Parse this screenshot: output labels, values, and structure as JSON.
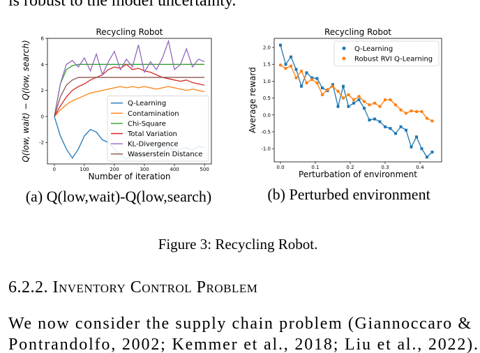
{
  "header": {
    "text": "is robust to the model uncertainty."
  },
  "chart_data": [
    {
      "type": "line",
      "title": "Recycling Robot",
      "x_label": "Number of iteration",
      "y_label": "Q(low, wait) − Q(low, search)",
      "x": [
        0,
        20,
        40,
        60,
        80,
        100,
        120,
        140,
        160,
        180,
        200,
        220,
        240,
        260,
        280,
        300,
        320,
        340,
        360,
        380,
        400,
        420,
        440,
        460,
        480,
        500
      ],
      "series": [
        {
          "name": "Q-Learning",
          "color": "#1f77b4",
          "values": [
            0,
            -1.5,
            -2.5,
            -3.2,
            -2.5,
            -1.5,
            -1,
            -1.2,
            -1.8,
            -2,
            -2.5,
            -3,
            -3.3,
            -3,
            -2.8,
            -3,
            -2.5,
            -2.6,
            -2.8,
            -2.4,
            -2.6,
            -2.5,
            -2.4,
            -2.6,
            -2.3,
            -2.4
          ]
        },
        {
          "name": "Contamination",
          "color": "#ff7f0e",
          "values": [
            0,
            0.5,
            0.9,
            1.2,
            1.4,
            1.6,
            1.8,
            1.9,
            2.0,
            2.1,
            2.2,
            2.3,
            2.2,
            2.3,
            2.2,
            2.3,
            2.2,
            2.1,
            2.2,
            2.3,
            2.2,
            2.1,
            2.0,
            2.1,
            2.0,
            1.9
          ]
        },
        {
          "name": "Chi-Square",
          "color": "#2ca02c",
          "values": [
            0,
            2.5,
            3.6,
            3.9,
            4,
            4,
            4,
            4,
            4,
            4,
            4,
            4,
            4,
            4,
            4,
            4,
            4,
            4,
            4,
            4,
            4,
            4,
            4,
            4,
            4,
            4
          ]
        },
        {
          "name": "Total Variation",
          "color": "#d62728",
          "values": [
            0,
            0.8,
            1.5,
            2,
            2.3,
            2.5,
            2.8,
            3.0,
            3.2,
            3.6,
            3.8,
            3.7,
            4.0,
            3.6,
            3.7,
            3.5,
            3.4,
            3.2,
            3.0,
            2.9,
            2.8,
            2.7,
            2.8,
            2.6,
            2.5,
            2.4
          ]
        },
        {
          "name": "KL-Divergence",
          "color": "#9467bd",
          "values": [
            0,
            2.5,
            4,
            4.3,
            3.8,
            4.5,
            3.5,
            4.8,
            3.2,
            4.2,
            5.0,
            3.6,
            4.4,
            3.8,
            5.5,
            3.4,
            4.2,
            3.6,
            4.5,
            5.8,
            3.6,
            4.0,
            5.2,
            3.8,
            4.4,
            4.2
          ]
        },
        {
          "name": "Wasserstein Distance",
          "color": "#8c564b",
          "values": [
            0,
            1.5,
            2.4,
            2.8,
            3,
            3,
            3,
            3,
            3,
            3,
            3,
            3,
            3,
            3,
            3,
            3,
            3,
            3,
            3,
            3,
            3,
            3,
            3,
            3,
            3,
            3
          ]
        }
      ],
      "xlim": [
        -23,
        523
      ],
      "xticks": [
        0,
        100,
        200,
        300,
        400,
        500
      ],
      "ylim": [
        -3.65,
        6
      ],
      "yticks": [
        -2,
        0,
        2,
        4,
        6
      ],
      "legend": "lower right",
      "caption": "(a) Q(low,wait)-Q(low,search)"
    },
    {
      "type": "line",
      "title": "Recycling Robot",
      "x_label": "Perturbation of environment",
      "y_label": "Average reward",
      "x": [
        0,
        0.015,
        0.03,
        0.045,
        0.06,
        0.075,
        0.09,
        0.105,
        0.12,
        0.135,
        0.15,
        0.165,
        0.18,
        0.195,
        0.21,
        0.225,
        0.24,
        0.255,
        0.27,
        0.285,
        0.3,
        0.315,
        0.33,
        0.345,
        0.36,
        0.375,
        0.39,
        0.405,
        0.42,
        0.435
      ],
      "series": [
        {
          "name": "Q-Learning",
          "color": "#1f77b4",
          "marker": "square",
          "values": [
            2.07,
            1.5,
            1.72,
            1.35,
            0.85,
            1.25,
            1.1,
            1.08,
            0.8,
            0.72,
            0.9,
            0.25,
            0.85,
            0.25,
            0.35,
            0.45,
            0.2,
            -0.15,
            -0.12,
            -0.2,
            -0.35,
            -0.4,
            -0.55,
            -0.35,
            -0.45,
            -0.95,
            -0.65,
            -1.0,
            -1.25,
            -1.1
          ]
        },
        {
          "name": "Robust RVI Q-Learning",
          "color": "#ff7f0e",
          "marker": "circle",
          "values": [
            1.48,
            1.38,
            1.45,
            1.1,
            1.3,
            0.95,
            1.05,
            0.95,
            0.6,
            0.75,
            0.85,
            0.7,
            0.5,
            0.6,
            0.45,
            0.55,
            0.4,
            0.3,
            0.35,
            0.25,
            0.45,
            0.45,
            0.3,
            0.15,
            0.05,
            0.12,
            0.1,
            0.1,
            -0.1,
            -0.18
          ]
        }
      ],
      "xlim": [
        -0.018,
        0.462
      ],
      "xticks": [
        {
          "value": 0,
          "label": "0.0"
        },
        0.1,
        0.2,
        0.3,
        0.4
      ],
      "ylim": [
        -1.39,
        2.27
      ],
      "yticks": [
        {
          "value": -1,
          "label": "-1.0"
        },
        -0.5,
        {
          "value": 0,
          "label": "0.0"
        },
        0.5,
        {
          "value": 1,
          "label": "1.0"
        },
        1.5,
        {
          "value": 2,
          "label": "2.0"
        }
      ],
      "legend": "upper right",
      "caption": "(b) Perturbed environment"
    }
  ],
  "figure_caption": "Figure 3: Recycling Robot.",
  "section": {
    "heading": "6.2.2. Inventory Control Problem"
  },
  "paragraph": {
    "lines": [
      "We now consider the supply chain problem (Giannoccaro &",
      "Pontrandolfo, 2002; Kemmer et al., 2018; Liu et al., 2022)."
    ]
  }
}
